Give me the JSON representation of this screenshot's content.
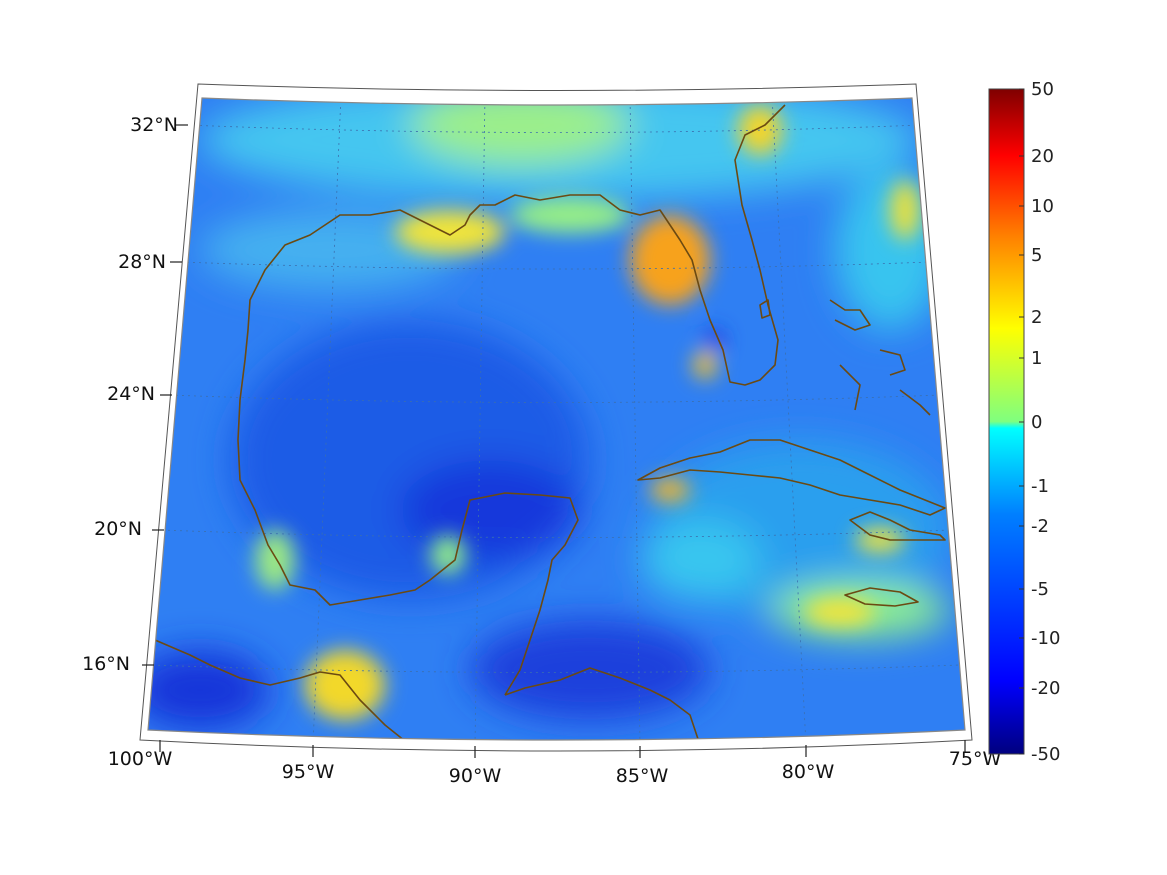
{
  "map": {
    "lat_labels": [
      "32°N",
      "28°N",
      "24°N",
      "20°N",
      "16°N"
    ],
    "lon_labels": [
      "100°W",
      "95°W",
      "90°W",
      "85°W",
      "80°W",
      "75°W"
    ],
    "field_colors": {
      "deep_blue": "#1a3ce8",
      "blue": "#2a6ff2",
      "light_blue": "#3aa3f4",
      "cyan": "#1ed0ee",
      "green": "#8df087",
      "yellow": "#f3e72a",
      "orange": "#f7a520",
      "coast": "#6b4a12",
      "frame": "#777777",
      "grid": "#3b6fae"
    }
  },
  "colorbar": {
    "tick_labels": [
      "50",
      "20",
      "10",
      "5",
      "2",
      "1",
      "0",
      "-1",
      "-2",
      "-5",
      "-10",
      "-20",
      "-50"
    ],
    "colors": [
      "#7f0000",
      "#ff0000",
      "#ff7f00",
      "#ffff00",
      "#7fff7f",
      "#00ffff",
      "#007fff",
      "#0000ff",
      "#00007f"
    ]
  }
}
